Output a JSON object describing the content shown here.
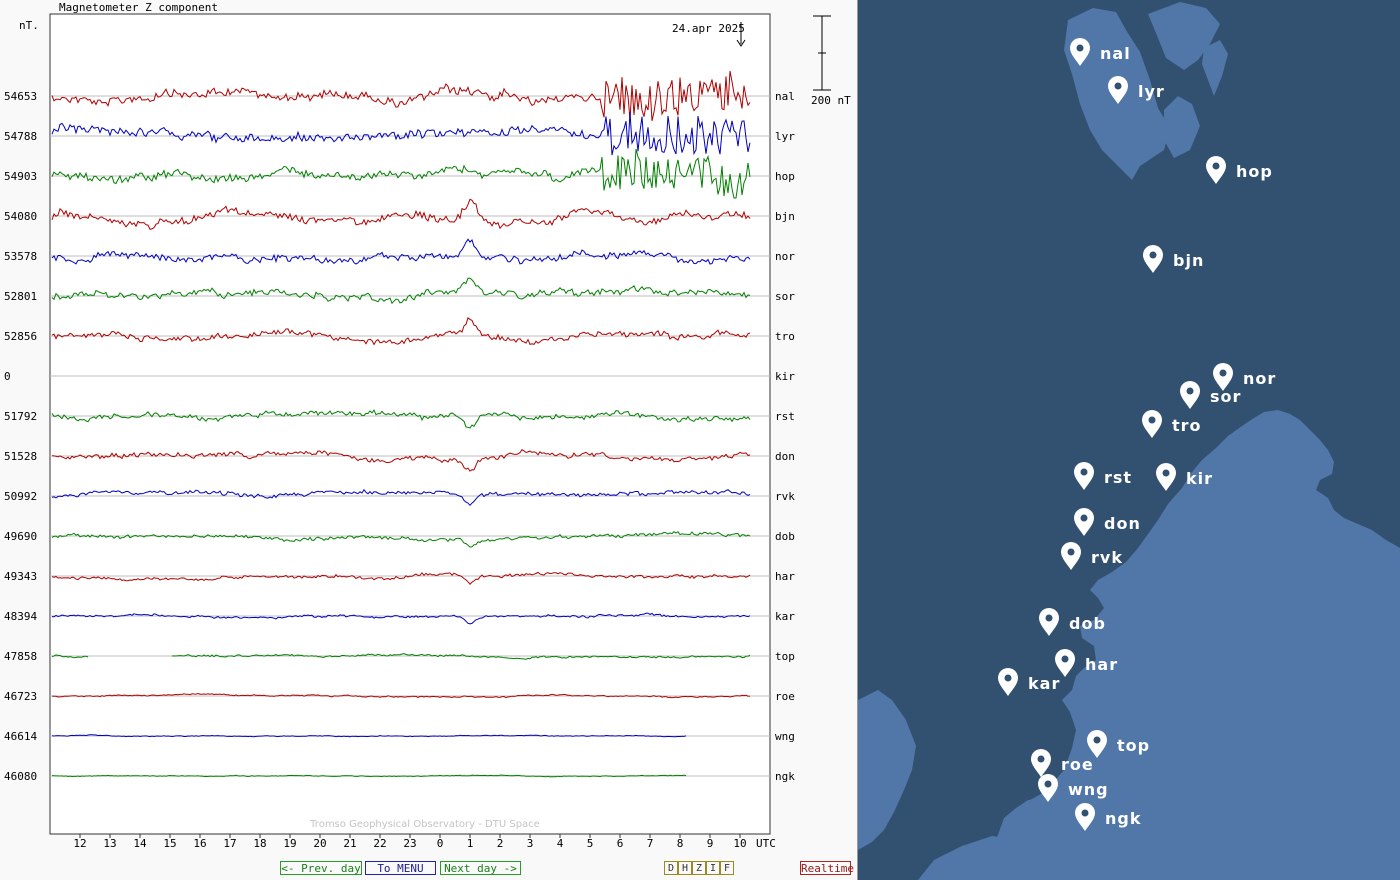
{
  "chart_data": {
    "type": "line",
    "title": "Magnetometer Z component",
    "ylabel": "nT.",
    "date_label": "24.apr 2025",
    "scale_label": "200 nT",
    "xlabel": "UTC",
    "x_ticks": [
      "12",
      "13",
      "14",
      "15",
      "16",
      "17",
      "18",
      "19",
      "20",
      "21",
      "22",
      "23",
      "0",
      "1",
      "2",
      "3",
      "4",
      "5",
      "6",
      "7",
      "8",
      "9",
      "10"
    ],
    "footer": "Tromso Geophysical Observatory - DTU Space",
    "series": [
      {
        "name": "nal",
        "baseline": "54653",
        "color": "#b00000"
      },
      {
        "name": "lyr",
        "baseline": "54788",
        "color": "#0000c0"
      },
      {
        "name": "hop",
        "baseline": "54903",
        "color": "#008000"
      },
      {
        "name": "bjn",
        "baseline": "54080",
        "color": "#b00000"
      },
      {
        "name": "nor",
        "baseline": "53578",
        "color": "#0000c0"
      },
      {
        "name": "sor",
        "baseline": "52801",
        "color": "#008000"
      },
      {
        "name": "tro",
        "baseline": "52856",
        "color": "#b00000"
      },
      {
        "name": "kir",
        "baseline": "0",
        "color": "#0000c0"
      },
      {
        "name": "rst",
        "baseline": "51792",
        "color": "#008000"
      },
      {
        "name": "don",
        "baseline": "51528",
        "color": "#b00000"
      },
      {
        "name": "rvk",
        "baseline": "50992",
        "color": "#0000c0"
      },
      {
        "name": "dob",
        "baseline": "49690",
        "color": "#008000"
      },
      {
        "name": "har",
        "baseline": "49343",
        "color": "#b00000"
      },
      {
        "name": "kar",
        "baseline": "48394",
        "color": "#0000c0"
      },
      {
        "name": "top",
        "baseline": "47858",
        "color": "#008000"
      },
      {
        "name": "roe",
        "baseline": "46723",
        "color": "#b00000"
      },
      {
        "name": "wng",
        "baseline": "46614",
        "color": "#0000c0"
      },
      {
        "name": "ngk",
        "baseline": "46080",
        "color": "#008000"
      }
    ]
  },
  "nav": {
    "prev": "<- Prev. day",
    "menu": "To MENU",
    "next": "Next day ->",
    "components": [
      "D",
      "H",
      "Z",
      "I",
      "F"
    ],
    "realtime": "Realtime"
  },
  "map": {
    "colors": {
      "sea": "#32506f",
      "land": "#5177a8",
      "pin": "#ffffff"
    },
    "stations": [
      "nal",
      "lyr",
      "hop",
      "bjn",
      "nor",
      "sor",
      "tro",
      "rst",
      "kir",
      "don",
      "rvk",
      "dob",
      "har",
      "kar",
      "top",
      "roe",
      "wng",
      "ngk"
    ]
  }
}
